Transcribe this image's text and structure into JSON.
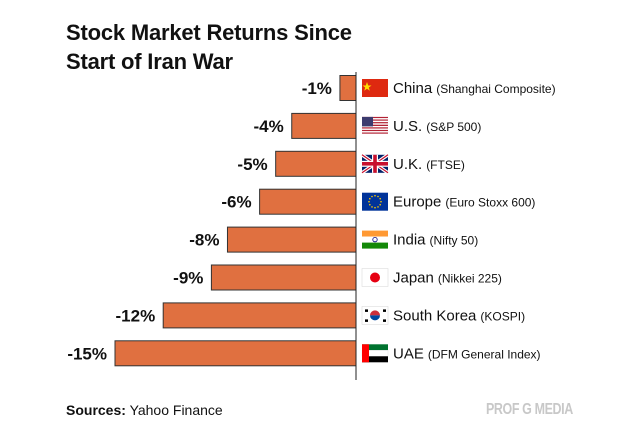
{
  "chart_data": {
    "type": "bar",
    "orientation": "horizontal",
    "title": "Stock Market Returns Since Start of Iran War",
    "title_lines": [
      "Stock Market Returns Since",
      "Start of Iran War"
    ],
    "categories": [
      "China",
      "U.S.",
      "U.K.",
      "Europe",
      "India",
      "Japan",
      "South Korea",
      "UAE"
    ],
    "indices": [
      "(Shanghai Composite)",
      "(S&P 500)",
      "(FTSE)",
      "(Euro Stoxx 600)",
      "(Nifty 50)",
      "(Nikkei 225)",
      "(KOSPI)",
      "(DFM General Index)"
    ],
    "flags": [
      "china-flag",
      "us-flag",
      "uk-flag",
      "eu-flag",
      "india-flag",
      "japan-flag",
      "south-korea-flag",
      "uae-flag"
    ],
    "values": [
      -1,
      -4,
      -5,
      -6,
      -8,
      -9,
      -12,
      -15
    ],
    "data_labels": [
      "-1%",
      "-4%",
      "-5%",
      "-6%",
      "-8%",
      "-9%",
      "-12%",
      "-15%"
    ],
    "unit": "%",
    "xlim": [
      -15,
      0
    ],
    "grid": false,
    "bar_color": "#e07040",
    "xlabel": "",
    "ylabel": ""
  },
  "footer": {
    "sources_label": "Sources:",
    "sources_value": "Yahoo Finance",
    "brand": "PROF G MEDIA"
  }
}
